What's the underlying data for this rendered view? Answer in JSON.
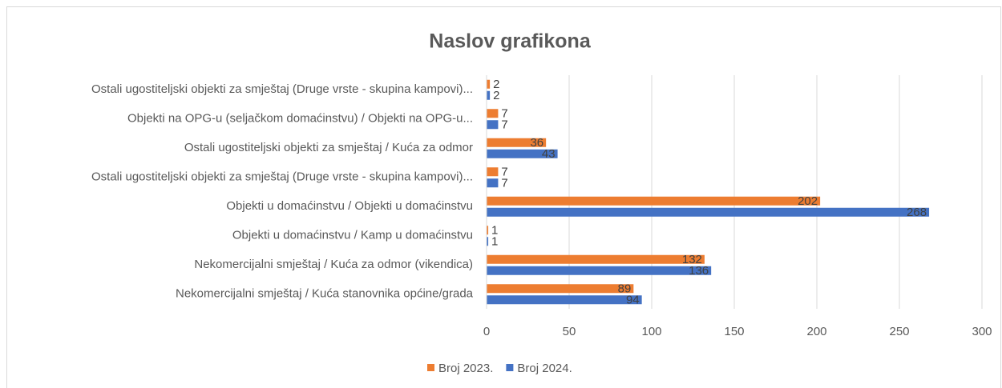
{
  "chart_data": {
    "type": "bar",
    "orientation": "horizontal",
    "title": "Naslov grafikona",
    "categories": [
      "Ostali ugostiteljski objekti za smještaj (Druge vrste - skupina kampovi)...",
      "Objekti na OPG-u (seljačkom domaćinstvu) / Objekti na OPG-u...",
      "Ostali ugostiteljski objekti za smještaj  / Kuća za odmor",
      "Ostali ugostiteljski objekti za smještaj (Druge vrste - skupina kampovi)...",
      "Objekti u domaćinstvu / Objekti u domaćinstvu",
      "Objekti u domaćinstvu / Kamp u domaćinstvu",
      "Nekomercijalni smještaj / Kuća za odmor (vikendica)",
      "Nekomercijalni smještaj / Kuća stanovnika općine/grada"
    ],
    "series": [
      {
        "name": "Broj 2023.",
        "color": "#ED7D31",
        "values": [
          2,
          7,
          36,
          7,
          202,
          1,
          132,
          89
        ]
      },
      {
        "name": "Broj 2024.",
        "color": "#4472C4",
        "values": [
          2,
          7,
          43,
          7,
          268,
          1,
          136,
          94
        ]
      }
    ],
    "xlim": [
      0,
      300
    ],
    "xticks": [
      0,
      50,
      100,
      150,
      200,
      250,
      300
    ],
    "grid": true,
    "legend": "bottom"
  }
}
